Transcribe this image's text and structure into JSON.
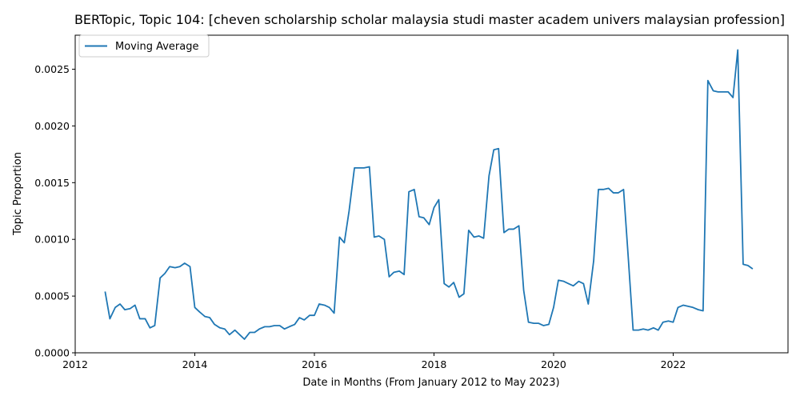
{
  "chart_data": {
    "type": "line",
    "title": "BERTopic, Topic 104: [cheven scholarship scholar malaysia studi master academ univers malaysian profession]",
    "xlabel": "Date in Months (From January 2012 to May 2023)",
    "ylabel": "Topic Proportion",
    "xlim": [
      2012.0,
      2023.92
    ],
    "ylim": [
      0.0,
      0.0028
    ],
    "x_ticks": [
      2012,
      2014,
      2016,
      2018,
      2020,
      2022
    ],
    "x_tick_labels": [
      "2012",
      "2014",
      "2016",
      "2018",
      "2020",
      "2022"
    ],
    "y_ticks": [
      0.0,
      0.0005,
      0.001,
      0.0015,
      0.002,
      0.0025
    ],
    "y_tick_labels": [
      "0.0000",
      "0.0005",
      "0.0010",
      "0.0015",
      "0.0020",
      "0.0025"
    ],
    "legend": {
      "position": "top-left",
      "entries": [
        "Moving Average"
      ]
    },
    "series": [
      {
        "name": "Moving Average",
        "color": "#1f77b4",
        "x": [
          2012.5,
          2012.58,
          2012.67,
          2012.75,
          2012.83,
          2012.92,
          2013.0,
          2013.08,
          2013.17,
          2013.25,
          2013.33,
          2013.42,
          2013.5,
          2013.58,
          2013.67,
          2013.75,
          2013.83,
          2013.92,
          2014.0,
          2014.08,
          2014.17,
          2014.25,
          2014.33,
          2014.42,
          2014.5,
          2014.58,
          2014.67,
          2014.75,
          2014.83,
          2014.92,
          2015.0,
          2015.08,
          2015.17,
          2015.25,
          2015.33,
          2015.42,
          2015.5,
          2015.58,
          2015.67,
          2015.75,
          2015.83,
          2015.92,
          2016.0,
          2016.08,
          2016.17,
          2016.25,
          2016.33,
          2016.42,
          2016.5,
          2016.58,
          2016.67,
          2016.75,
          2016.83,
          2016.92,
          2017.0,
          2017.08,
          2017.17,
          2017.25,
          2017.33,
          2017.42,
          2017.5,
          2017.58,
          2017.67,
          2017.75,
          2017.83,
          2017.92,
          2018.0,
          2018.08,
          2018.17,
          2018.25,
          2018.33,
          2018.42,
          2018.5,
          2018.58,
          2018.67,
          2018.75,
          2018.83,
          2018.92,
          2019.0,
          2019.08,
          2019.17,
          2019.25,
          2019.33,
          2019.42,
          2019.5,
          2019.58,
          2019.67,
          2019.75,
          2019.83,
          2019.92,
          2020.0,
          2020.08,
          2020.17,
          2020.25,
          2020.33,
          2020.42,
          2020.5,
          2020.58,
          2020.67,
          2020.75,
          2020.83,
          2020.92,
          2021.0,
          2021.08,
          2021.17,
          2021.25,
          2021.33,
          2021.42,
          2021.5,
          2021.58,
          2021.67,
          2021.75,
          2021.83,
          2021.92,
          2022.0,
          2022.08,
          2022.17,
          2022.25,
          2022.33,
          2022.42,
          2022.5,
          2022.58,
          2022.67,
          2022.75,
          2022.83,
          2022.92,
          2023.0,
          2023.08,
          2023.17,
          2023.25,
          2023.33
        ],
        "y": [
          0.00054,
          0.0003,
          0.0004,
          0.00043,
          0.00038,
          0.00039,
          0.00042,
          0.0003,
          0.0003,
          0.00022,
          0.00024,
          0.00066,
          0.0007,
          0.00076,
          0.00075,
          0.00076,
          0.00079,
          0.00076,
          0.0004,
          0.00036,
          0.00032,
          0.00031,
          0.00025,
          0.00022,
          0.00021,
          0.00016,
          0.0002,
          0.00016,
          0.00012,
          0.00018,
          0.00018,
          0.00021,
          0.00023,
          0.00023,
          0.00024,
          0.00024,
          0.00021,
          0.00023,
          0.00025,
          0.00031,
          0.00029,
          0.00033,
          0.00033,
          0.00043,
          0.00042,
          0.0004,
          0.00035,
          0.00102,
          0.00097,
          0.00125,
          0.00163,
          0.00163,
          0.00163,
          0.00164,
          0.00102,
          0.00103,
          0.001,
          0.00067,
          0.00071,
          0.00072,
          0.00069,
          0.00142,
          0.00144,
          0.0012,
          0.00119,
          0.00113,
          0.00128,
          0.00135,
          0.00061,
          0.00058,
          0.00062,
          0.00049,
          0.00052,
          0.00108,
          0.00102,
          0.00103,
          0.00101,
          0.00156,
          0.00179,
          0.0018,
          0.00106,
          0.00109,
          0.00109,
          0.00112,
          0.00055,
          0.00027,
          0.00026,
          0.00026,
          0.00024,
          0.00025,
          0.0004,
          0.00064,
          0.00063,
          0.00061,
          0.00059,
          0.00063,
          0.00061,
          0.00043,
          0.00081,
          0.00144,
          0.00144,
          0.00145,
          0.00141,
          0.00141,
          0.00144,
          0.00083,
          0.0002,
          0.0002,
          0.00021,
          0.0002,
          0.00022,
          0.0002,
          0.00027,
          0.00028,
          0.00027,
          0.0004,
          0.00042,
          0.00041,
          0.0004,
          0.00038,
          0.00037,
          0.0024,
          0.00231,
          0.0023,
          0.0023,
          0.0023,
          0.00225,
          0.00267,
          0.00078,
          0.00077,
          0.00074
        ]
      }
    ]
  }
}
